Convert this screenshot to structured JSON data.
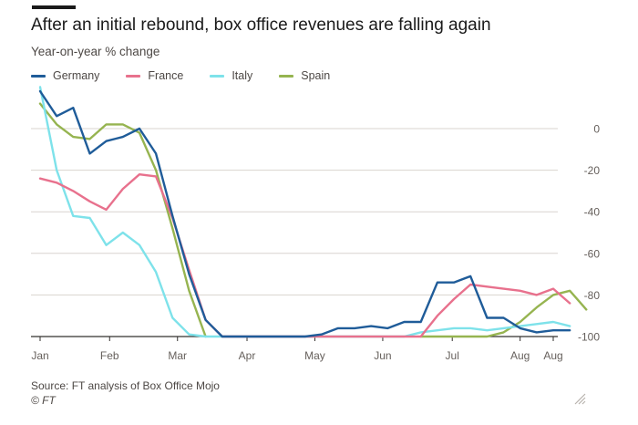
{
  "header": {
    "title": "After an initial rebound, box office revenues are falling again",
    "subtitle": "Year-on-year % change"
  },
  "footer": {
    "source": "Source: FT analysis of Box Office Mojo",
    "credit": "© FT"
  },
  "colors": {
    "grid": "#d9d4cf",
    "axis_text": "#66605c",
    "baseline": "#33302e"
  },
  "chart_data": {
    "type": "line",
    "title": "After an initial rebound, box office revenues are falling again",
    "ylabel": "Year-on-year % change",
    "xlabel": "",
    "ylim": [
      -100,
      10
    ],
    "yticks": [
      0,
      -20,
      -40,
      -60,
      -80,
      -100
    ],
    "ytick_labels": [
      "0",
      "-20",
      "-40",
      "-60",
      "-80",
      "-100"
    ],
    "x_unit": "week",
    "xlim": [
      0,
      31
    ],
    "xtick_positions": [
      0,
      4.2,
      8.3,
      12.5,
      16.6,
      20.7,
      24.9,
      29,
      31
    ],
    "xtick_labels": [
      "Jan",
      "Feb",
      "Mar",
      "Apr",
      "May",
      "Jun",
      "Jul",
      "Aug",
      "Aug"
    ],
    "grid": true,
    "legend_position": "top-left",
    "series": [
      {
        "name": "Germany",
        "color": "#1f5c99",
        "values": [
          18,
          6,
          10,
          -12,
          -6,
          -4,
          0,
          -12,
          -42,
          -70,
          -92,
          -100,
          -100,
          -100,
          -100,
          -100,
          -100,
          -99,
          -96,
          -96,
          -95,
          -96,
          -93,
          -93,
          -74,
          -74,
          -71,
          -91,
          -91,
          -96,
          -98,
          -97,
          -97
        ]
      },
      {
        "name": "France",
        "color": "#e8718d",
        "values": [
          -24,
          -26,
          -30,
          -35,
          -39,
          -29,
          -22,
          -23,
          -43,
          -68,
          -92,
          -100,
          -100,
          -100,
          -100,
          -100,
          -100,
          -100,
          -100,
          -100,
          -100,
          -100,
          -100,
          -100,
          -90,
          -82,
          -75,
          -76,
          -77,
          -78,
          -80,
          -77,
          -84
        ]
      },
      {
        "name": "Italy",
        "color": "#7ee2ea",
        "values": [
          20,
          -20,
          -42,
          -43,
          -56,
          -50,
          -56,
          -69,
          -91,
          -99,
          -100,
          -100,
          -100,
          -100,
          -100,
          -100,
          -100,
          -100,
          -100,
          -100,
          -100,
          -100,
          -100,
          -98,
          -97,
          -96,
          -96,
          -97,
          -96,
          -95,
          -94,
          -93,
          -95
        ]
      },
      {
        "name": "Spain",
        "color": "#96b450",
        "values": [
          12,
          2,
          -4,
          -5,
          2,
          2,
          -2,
          -20,
          -48,
          -78,
          -100,
          null,
          null,
          null,
          null,
          null,
          null,
          null,
          null,
          null,
          null,
          null,
          null,
          -100,
          -100,
          -100,
          -100,
          -100,
          -98,
          -93,
          -86,
          -80,
          -78,
          -87
        ]
      }
    ]
  }
}
